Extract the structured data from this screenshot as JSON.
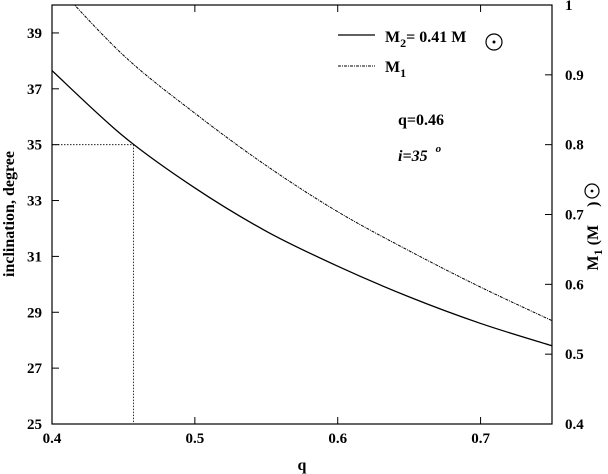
{
  "chart_data": {
    "type": "line",
    "xlabel": "q",
    "ylabel_left": "inclination, degree",
    "ylabel_right": "M",
    "ylabel_right_sub": "1",
    "ylabel_right_unit_open": "(M",
    "ylabel_right_unit_close": ")",
    "xlim": [
      0.4,
      0.75
    ],
    "ylim_left": [
      25,
      40
    ],
    "ylim_right": [
      0.4,
      1.0
    ],
    "x_ticks": [
      "0.4",
      "0.5",
      "0.6",
      "0.7"
    ],
    "y_left_ticks": [
      "25",
      "27",
      "29",
      "31",
      "33",
      "35",
      "37",
      "39"
    ],
    "y_right_ticks": [
      "0.4",
      "0.5",
      "0.6",
      "0.7",
      "0.8",
      "0.9",
      "1"
    ],
    "legend": {
      "placement": "top-right",
      "entries": [
        {
          "prefix": "M",
          "sub": "2",
          "rest": "= 0.41 M",
          "style": "solid"
        },
        {
          "prefix": "M",
          "sub": "1",
          "rest": "",
          "style": "dotted"
        }
      ]
    },
    "annotations": [
      {
        "text": "q=0.46"
      },
      {
        "text": "i=35",
        "superscript": "o"
      }
    ],
    "series": [
      {
        "axis": "left",
        "style": "solid",
        "x": [
          0.4,
          0.45,
          0.5,
          0.55,
          0.6,
          0.65,
          0.7,
          0.75
        ],
        "y": [
          37.65,
          35.3,
          33.45,
          31.9,
          30.65,
          29.55,
          28.6,
          27.8
        ]
      },
      {
        "axis": "right",
        "style": "dotted",
        "x": [
          0.4,
          0.45,
          0.5,
          0.55,
          0.6,
          0.65,
          0.7,
          0.75
        ],
        "y": [
          1.035,
          0.928,
          0.845,
          0.77,
          0.704,
          0.648,
          0.596,
          0.548
        ]
      }
    ],
    "reference_point": {
      "x": 0.457,
      "y": 35
    }
  }
}
